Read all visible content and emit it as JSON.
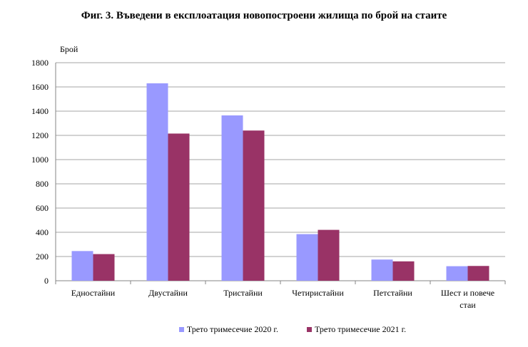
{
  "chart_data": {
    "type": "bar",
    "title": "Фиг. 3. Въведени в експлоатация новопостроени жилища по брой на стаите",
    "ylabel": "Брой",
    "xlabel": "",
    "ylim": [
      0,
      1800
    ],
    "yticks": [
      0,
      200,
      400,
      600,
      800,
      1000,
      1200,
      1400,
      1600,
      1800
    ],
    "grid": true,
    "legend_position": "bottom",
    "categories": [
      "Едностайни",
      "Двустайни",
      "Тристайни",
      "Четиристайни",
      "Петстайни",
      "Шест и повече стаи"
    ],
    "category_lines": [
      [
        "Едностайни"
      ],
      [
        "Двустайни"
      ],
      [
        "Тристайни"
      ],
      [
        "Четиристайни"
      ],
      [
        "Петстайни"
      ],
      [
        "Шест и повече",
        "стаи"
      ]
    ],
    "series": [
      {
        "name": "Трето тримесечие 2020 г.",
        "color": "#9999ff",
        "values": [
          245,
          1630,
          1365,
          385,
          175,
          120
        ]
      },
      {
        "name": "Трето тримесечие 2021 г.",
        "color": "#993366",
        "values": [
          220,
          1215,
          1240,
          420,
          160,
          122
        ]
      }
    ]
  }
}
